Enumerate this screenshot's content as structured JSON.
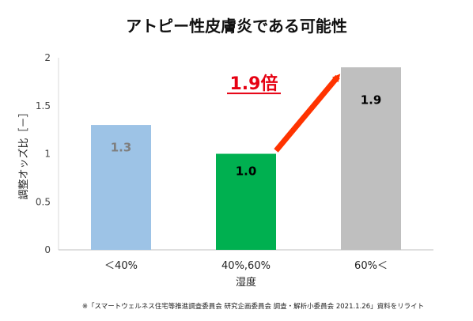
{
  "chart_data": {
    "type": "bar",
    "title": "アトピー性皮膚炎である可能性",
    "xlabel": "湿度",
    "ylabel": "調整オッズ比［－］",
    "categories": [
      "＜40%",
      "40%,60%",
      "60%＜"
    ],
    "values": [
      1.3,
      1.0,
      1.9
    ],
    "value_labels": [
      "1.3",
      "1.0",
      "1.9"
    ],
    "bar_colors": [
      "#9dc3e6",
      "#00b050",
      "#bfbfbf"
    ],
    "label_colors": [
      "#7f7f7f",
      "#000000",
      "#000000"
    ],
    "ylim": [
      0,
      2
    ],
    "yticks": [
      "0",
      "0.5",
      "1",
      "1.5",
      "2"
    ],
    "grid": false,
    "annotation": {
      "text": "1.9倍",
      "color": "#e60012",
      "arrow_color": "#ff3300",
      "from_category": "40%,60%",
      "to_category": "60%＜"
    },
    "source": "※「スマートウェルネス住宅等推進調査委員会 研究企画委員会 調査・解析小委員会 2021.1.26」資料をリライト"
  }
}
